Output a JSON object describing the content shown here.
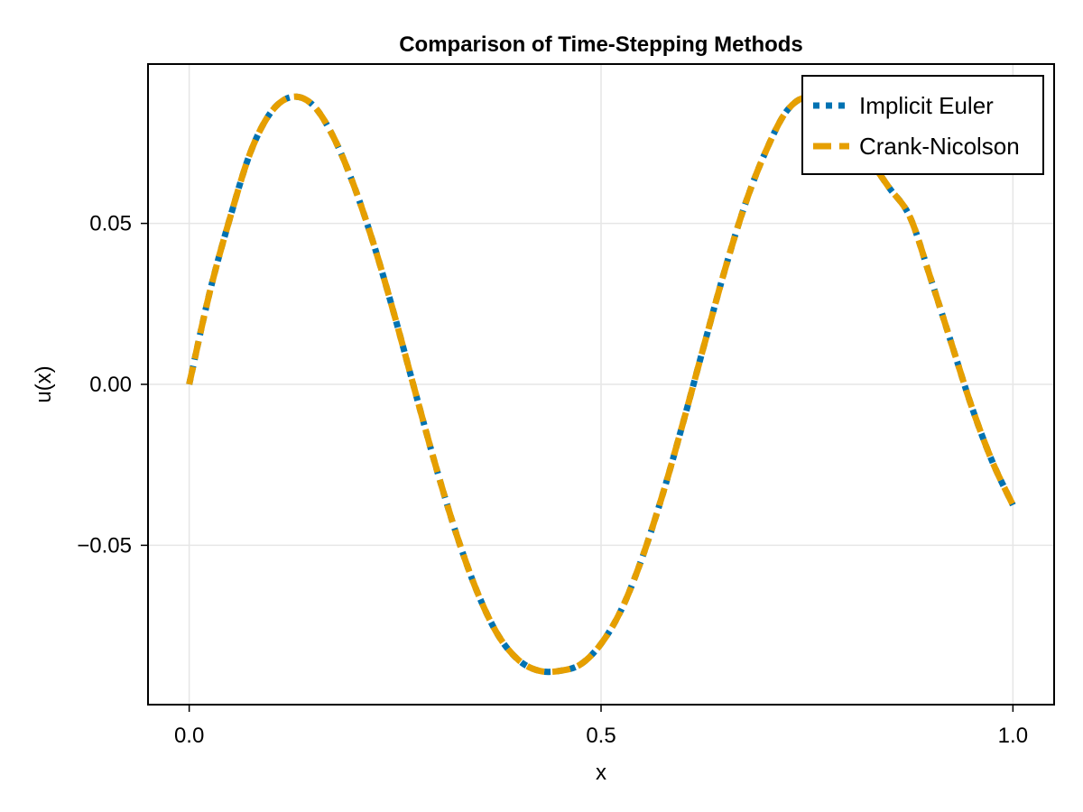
{
  "chart_data": {
    "type": "line",
    "title": "Comparison of Time-Stepping Methods",
    "xlabel": "x",
    "ylabel": "u(x)",
    "xlim": [
      -0.05,
      1.05
    ],
    "ylim": [
      -0.0995,
      0.0995
    ],
    "x_ticks": [
      {
        "value": 0.0,
        "label": "0.0"
      },
      {
        "value": 0.5,
        "label": "0.5"
      },
      {
        "value": 1.0,
        "label": "1.0"
      }
    ],
    "y_ticks": [
      {
        "value": -0.05,
        "label": "−0.05"
      },
      {
        "value": 0.0,
        "label": "0.00"
      },
      {
        "value": 0.05,
        "label": "0.05"
      }
    ],
    "grid": true,
    "legend_position": "top-right",
    "x": [
      0.0,
      0.025,
      0.05,
      0.075,
      0.1,
      0.125,
      0.15,
      0.175,
      0.2,
      0.225,
      0.25,
      0.275,
      0.3,
      0.325,
      0.35,
      0.375,
      0.4,
      0.425,
      0.45,
      0.475,
      0.5,
      0.525,
      0.55,
      0.575,
      0.6,
      0.625,
      0.65,
      0.675,
      0.7,
      0.725,
      0.75,
      0.775,
      0.8,
      0.825,
      0.85,
      0.875,
      0.9,
      0.925,
      0.95,
      0.975,
      1.0
    ],
    "series": [
      {
        "name": "Implicit Euler",
        "color": "#0072B2",
        "style": "dotted",
        "values": [
          0.0,
          0.0287,
          0.0521,
          0.0725,
          0.0848,
          0.0893,
          0.0868,
          0.0769,
          0.0617,
          0.0427,
          0.0207,
          -0.0029,
          -0.026,
          -0.047,
          -0.0647,
          -0.0779,
          -0.0857,
          -0.089,
          -0.089,
          -0.087,
          -0.0806,
          -0.0698,
          -0.0538,
          -0.034,
          -0.0115,
          0.0121,
          0.0353,
          0.056,
          0.0724,
          0.0848,
          0.0893,
          0.0868,
          0.078,
          0.07,
          0.061,
          0.052,
          0.033,
          0.013,
          -0.007,
          -0.024,
          -0.0375
        ]
      },
      {
        "name": "Crank-Nicolson",
        "color": "#E69F00",
        "style": "dashed",
        "values": [
          0.0,
          0.0287,
          0.0521,
          0.0725,
          0.0848,
          0.0893,
          0.0868,
          0.0769,
          0.0617,
          0.0427,
          0.0207,
          -0.0029,
          -0.026,
          -0.047,
          -0.0647,
          -0.0779,
          -0.0857,
          -0.089,
          -0.089,
          -0.087,
          -0.0806,
          -0.0698,
          -0.0538,
          -0.034,
          -0.0115,
          0.0121,
          0.0353,
          0.056,
          0.0724,
          0.0848,
          0.0893,
          0.0868,
          0.078,
          0.07,
          0.061,
          0.052,
          0.033,
          0.013,
          -0.007,
          -0.024,
          -0.0375
        ]
      }
    ]
  }
}
